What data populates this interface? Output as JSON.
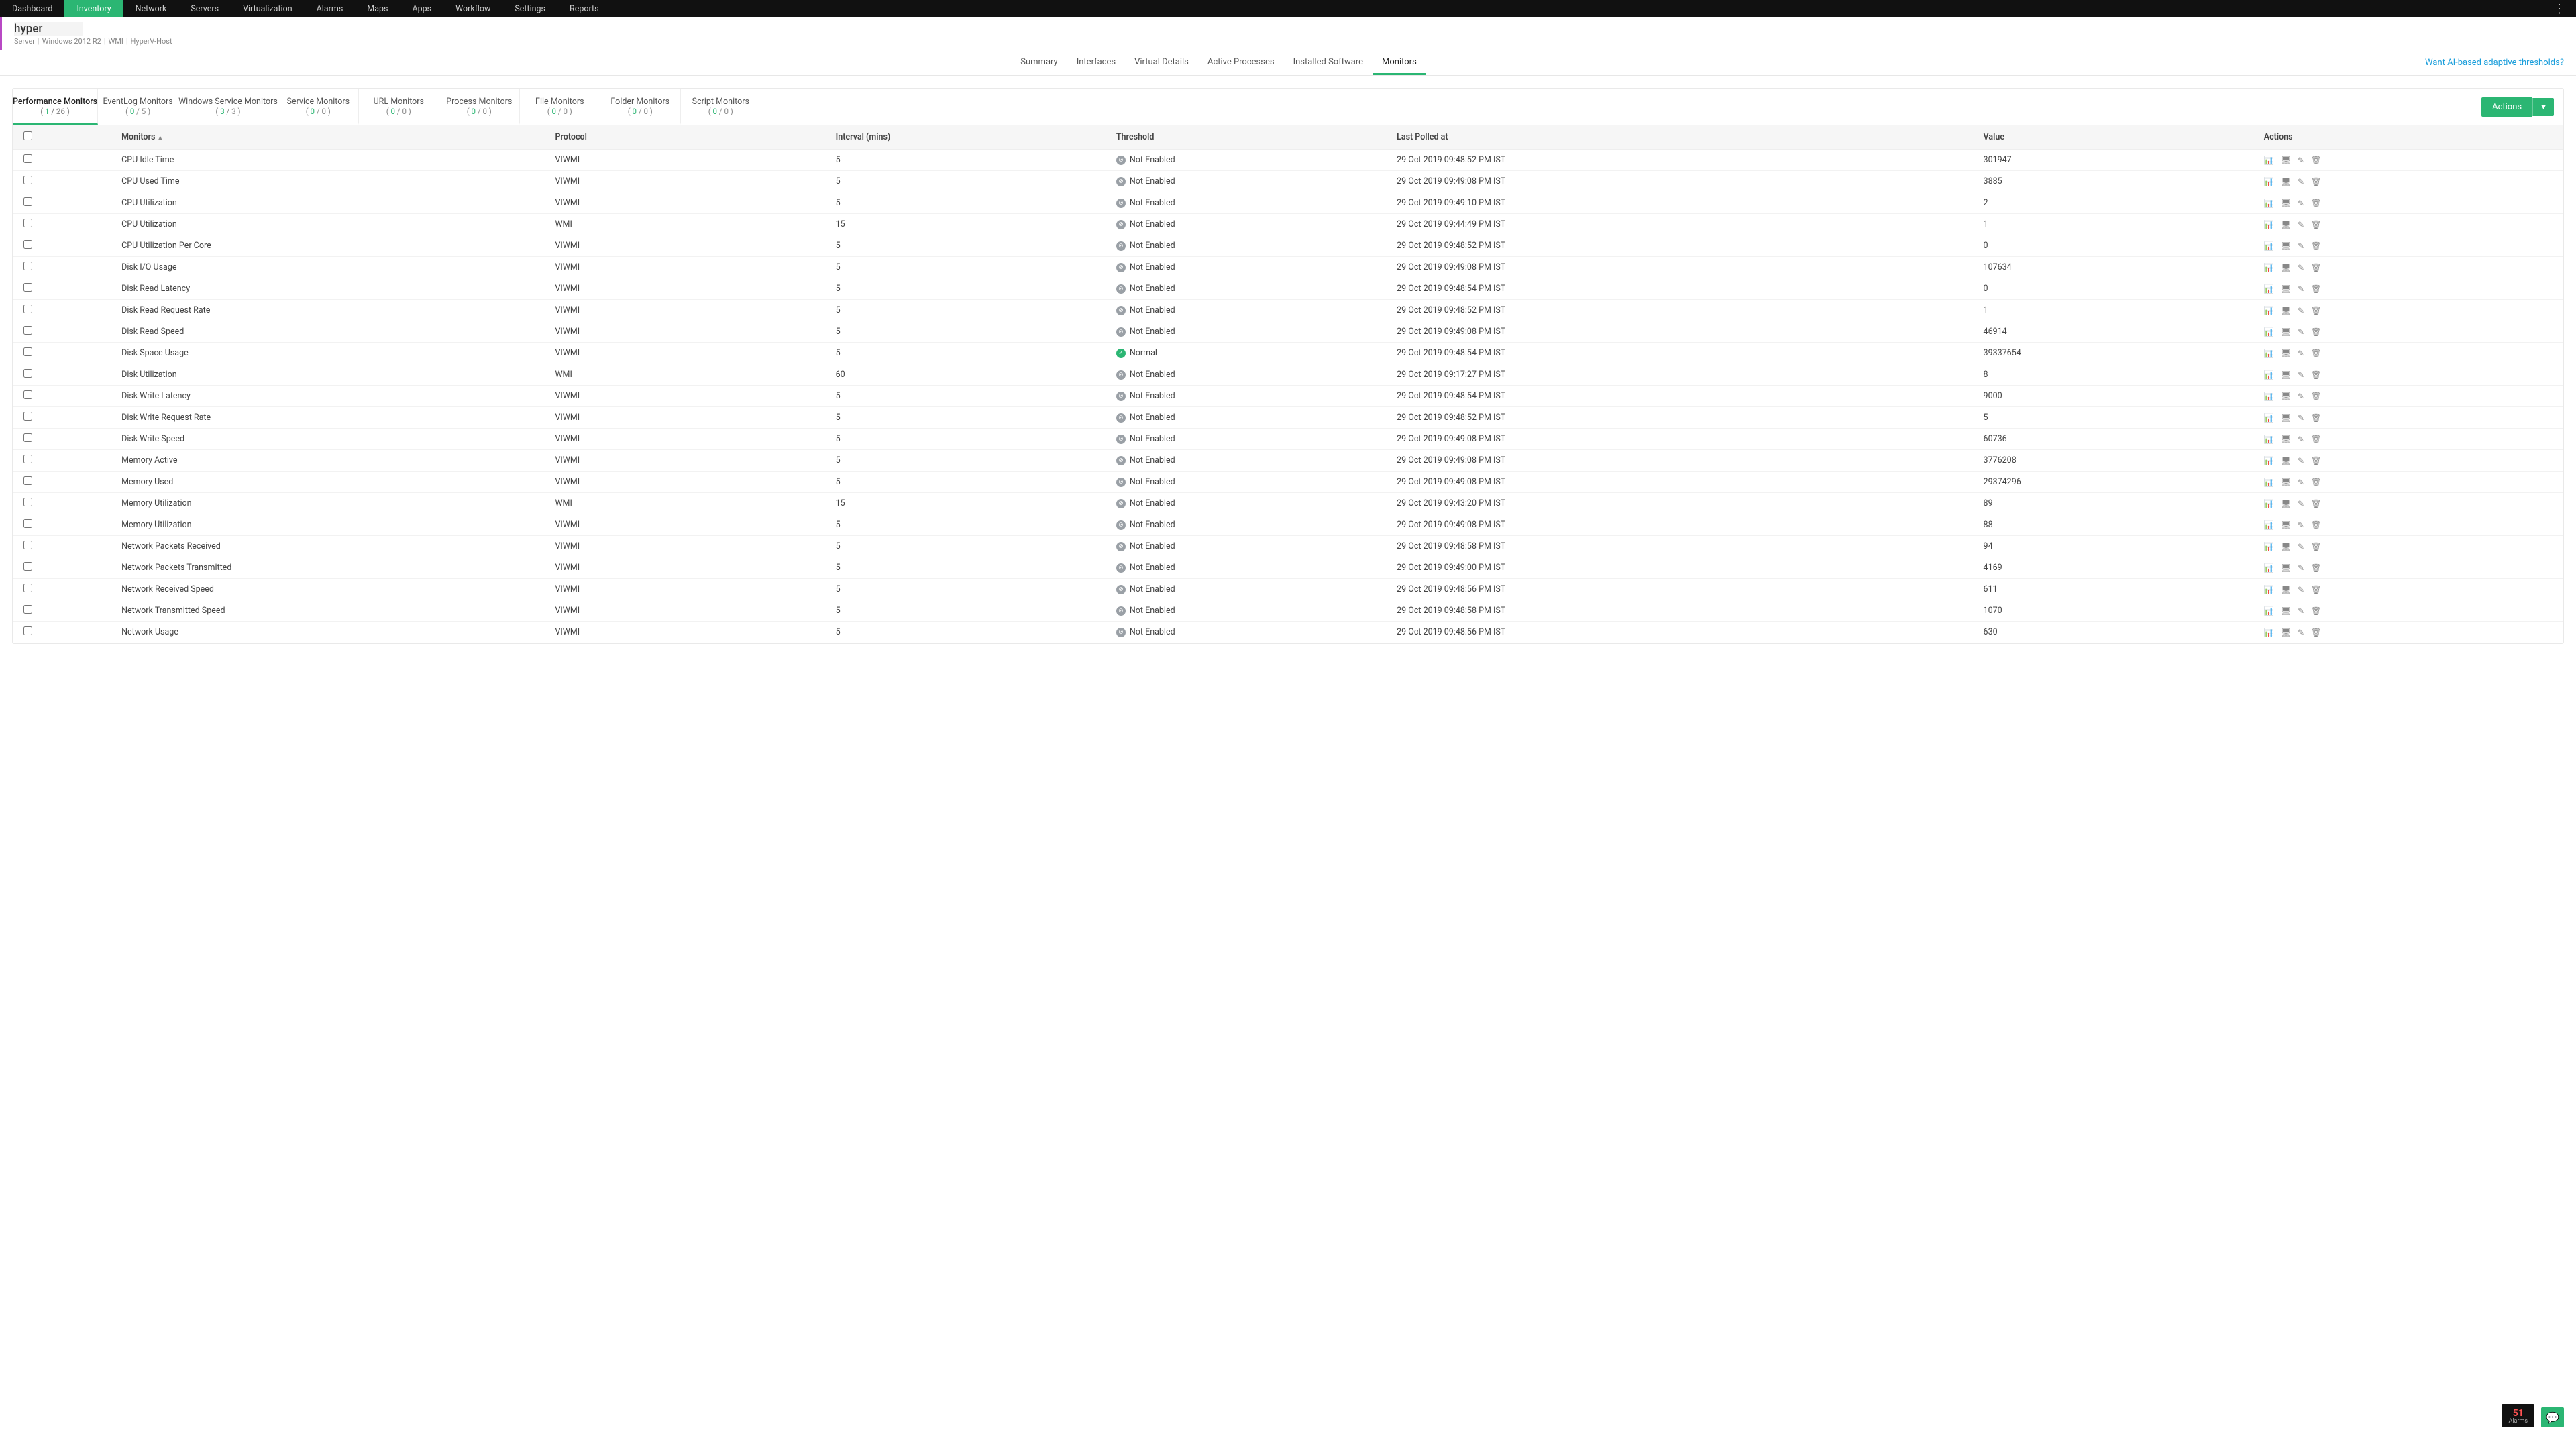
{
  "topnav": [
    "Dashboard",
    "Inventory",
    "Network",
    "Servers",
    "Virtualization",
    "Alarms",
    "Maps",
    "Apps",
    "Workflow",
    "Settings",
    "Reports"
  ],
  "topnav_active": 1,
  "server": {
    "name": "hyper",
    "meta": [
      "Server",
      "Windows 2012 R2",
      "WMI",
      "HyperV-Host"
    ]
  },
  "subnav": [
    "Summary",
    "Interfaces",
    "Virtual Details",
    "Active Processes",
    "Installed Software",
    "Monitors"
  ],
  "subnav_active": 5,
  "subnav_link": "Want AI-based adaptive thresholds?",
  "monitor_tabs": [
    {
      "label": "Performance Monitors",
      "a": "1",
      "b": "26"
    },
    {
      "label": "EventLog Monitors",
      "a": "0",
      "b": "5"
    },
    {
      "label": "Windows Service Monitors",
      "a": "3",
      "b": "3"
    },
    {
      "label": "Service Monitors",
      "a": "0",
      "b": "0"
    },
    {
      "label": "URL Monitors",
      "a": "0",
      "b": "0"
    },
    {
      "label": "Process Monitors",
      "a": "0",
      "b": "0"
    },
    {
      "label": "File Monitors",
      "a": "0",
      "b": "0"
    },
    {
      "label": "Folder Monitors",
      "a": "0",
      "b": "0"
    },
    {
      "label": "Script Monitors",
      "a": "0",
      "b": "0"
    }
  ],
  "monitor_tab_active": 0,
  "actions_label": "Actions",
  "columns": [
    "Monitors",
    "Protocol",
    "Interval (mins)",
    "Threshold",
    "Last Polled at",
    "Value",
    "Actions"
  ],
  "threshold_labels": {
    "disabled": "Not Enabled",
    "normal": "Normal"
  },
  "rows": [
    {
      "name": "CPU Idle Time",
      "proto": "VIWMI",
      "interval": "5",
      "thres": "disabled",
      "polled": "29 Oct 2019 09:48:52 PM IST",
      "value": "301947"
    },
    {
      "name": "CPU Used Time",
      "proto": "VIWMI",
      "interval": "5",
      "thres": "disabled",
      "polled": "29 Oct 2019 09:49:08 PM IST",
      "value": "3885"
    },
    {
      "name": "CPU Utilization",
      "proto": "VIWMI",
      "interval": "5",
      "thres": "disabled",
      "polled": "29 Oct 2019 09:49:10 PM IST",
      "value": "2"
    },
    {
      "name": "CPU Utilization",
      "proto": "WMI",
      "interval": "15",
      "thres": "disabled",
      "polled": "29 Oct 2019 09:44:49 PM IST",
      "value": "1"
    },
    {
      "name": "CPU Utilization Per Core",
      "proto": "VIWMI",
      "interval": "5",
      "thres": "disabled",
      "polled": "29 Oct 2019 09:48:52 PM IST",
      "value": "0"
    },
    {
      "name": "Disk I/O Usage",
      "proto": "VIWMI",
      "interval": "5",
      "thres": "disabled",
      "polled": "29 Oct 2019 09:49:08 PM IST",
      "value": "107634"
    },
    {
      "name": "Disk Read Latency",
      "proto": "VIWMI",
      "interval": "5",
      "thres": "disabled",
      "polled": "29 Oct 2019 09:48:54 PM IST",
      "value": "0"
    },
    {
      "name": "Disk Read Request Rate",
      "proto": "VIWMI",
      "interval": "5",
      "thres": "disabled",
      "polled": "29 Oct 2019 09:48:52 PM IST",
      "value": "1"
    },
    {
      "name": "Disk Read Speed",
      "proto": "VIWMI",
      "interval": "5",
      "thres": "disabled",
      "polled": "29 Oct 2019 09:49:08 PM IST",
      "value": "46914"
    },
    {
      "name": "Disk Space Usage",
      "proto": "VIWMI",
      "interval": "5",
      "thres": "normal",
      "polled": "29 Oct 2019 09:48:54 PM IST",
      "value": "39337654"
    },
    {
      "name": "Disk Utilization",
      "proto": "WMI",
      "interval": "60",
      "thres": "disabled",
      "polled": "29 Oct 2019 09:17:27 PM IST",
      "value": "8"
    },
    {
      "name": "Disk Write Latency",
      "proto": "VIWMI",
      "interval": "5",
      "thres": "disabled",
      "polled": "29 Oct 2019 09:48:54 PM IST",
      "value": "9000"
    },
    {
      "name": "Disk Write Request Rate",
      "proto": "VIWMI",
      "interval": "5",
      "thres": "disabled",
      "polled": "29 Oct 2019 09:48:52 PM IST",
      "value": "5"
    },
    {
      "name": "Disk Write Speed",
      "proto": "VIWMI",
      "interval": "5",
      "thres": "disabled",
      "polled": "29 Oct 2019 09:49:08 PM IST",
      "value": "60736"
    },
    {
      "name": "Memory Active",
      "proto": "VIWMI",
      "interval": "5",
      "thres": "disabled",
      "polled": "29 Oct 2019 09:49:08 PM IST",
      "value": "3776208"
    },
    {
      "name": "Memory Used",
      "proto": "VIWMI",
      "interval": "5",
      "thres": "disabled",
      "polled": "29 Oct 2019 09:49:08 PM IST",
      "value": "29374296"
    },
    {
      "name": "Memory Utilization",
      "proto": "WMI",
      "interval": "15",
      "thres": "disabled",
      "polled": "29 Oct 2019 09:43:20 PM IST",
      "value": "89"
    },
    {
      "name": "Memory Utilization",
      "proto": "VIWMI",
      "interval": "5",
      "thres": "disabled",
      "polled": "29 Oct 2019 09:49:08 PM IST",
      "value": "88"
    },
    {
      "name": "Network Packets Received",
      "proto": "VIWMI",
      "interval": "5",
      "thres": "disabled",
      "polled": "29 Oct 2019 09:48:58 PM IST",
      "value": "94"
    },
    {
      "name": "Network Packets Transmitted",
      "proto": "VIWMI",
      "interval": "5",
      "thres": "disabled",
      "polled": "29 Oct 2019 09:49:00 PM IST",
      "value": "4169"
    },
    {
      "name": "Network Received Speed",
      "proto": "VIWMI",
      "interval": "5",
      "thres": "disabled",
      "polled": "29 Oct 2019 09:48:56 PM IST",
      "value": "611"
    },
    {
      "name": "Network Transmitted Speed",
      "proto": "VIWMI",
      "interval": "5",
      "thres": "disabled",
      "polled": "29 Oct 2019 09:48:58 PM IST",
      "value": "1070"
    },
    {
      "name": "Network Usage",
      "proto": "VIWMI",
      "interval": "5",
      "thres": "disabled",
      "polled": "29 Oct 2019 09:48:56 PM IST",
      "value": "630"
    }
  ],
  "alarm": {
    "count": "51",
    "label": "Alarms"
  },
  "colors": {
    "accent": "#2bb673",
    "topnav": "#111",
    "link": "#1a9edb",
    "disabled": "#9aa0a6"
  }
}
